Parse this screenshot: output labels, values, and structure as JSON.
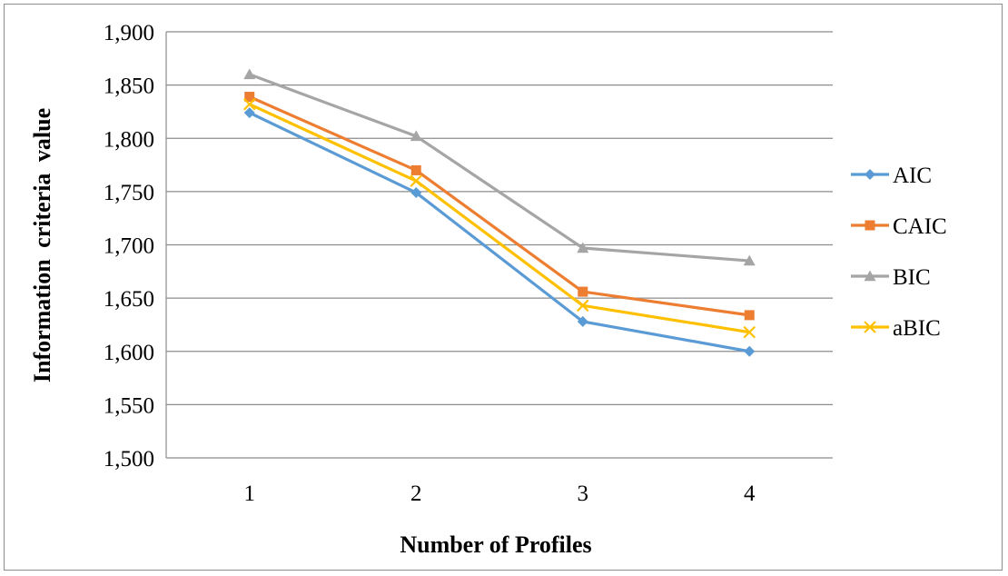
{
  "chart_data": {
    "type": "line",
    "categories": [
      "1",
      "2",
      "3",
      "4"
    ],
    "xlabel": "Number of Profiles",
    "ylabel": "Information criteria value",
    "ylim": [
      1500,
      1900
    ],
    "yticks": [
      1500,
      1550,
      1600,
      1650,
      1700,
      1750,
      1800,
      1850,
      1900
    ],
    "ytick_labels": [
      "1,500",
      "1,550",
      "1,600",
      "1,650",
      "1,700",
      "1,750",
      "1,800",
      "1,850",
      "1,900"
    ],
    "grid": true,
    "legend_position": "right",
    "series": [
      {
        "name": "AIC",
        "values": [
          1824,
          1749,
          1628,
          1600
        ],
        "color": "#5B9BD5",
        "marker": "diamond"
      },
      {
        "name": "CAIC",
        "values": [
          1839,
          1770,
          1656,
          1634
        ],
        "color": "#ED7D31",
        "marker": "square"
      },
      {
        "name": "BIC",
        "values": [
          1860,
          1802,
          1697,
          1685
        ],
        "color": "#A5A5A5",
        "marker": "triangle"
      },
      {
        "name": "aBIC",
        "values": [
          1832,
          1760,
          1643,
          1618
        ],
        "color": "#FFC000",
        "marker": "x"
      }
    ]
  }
}
